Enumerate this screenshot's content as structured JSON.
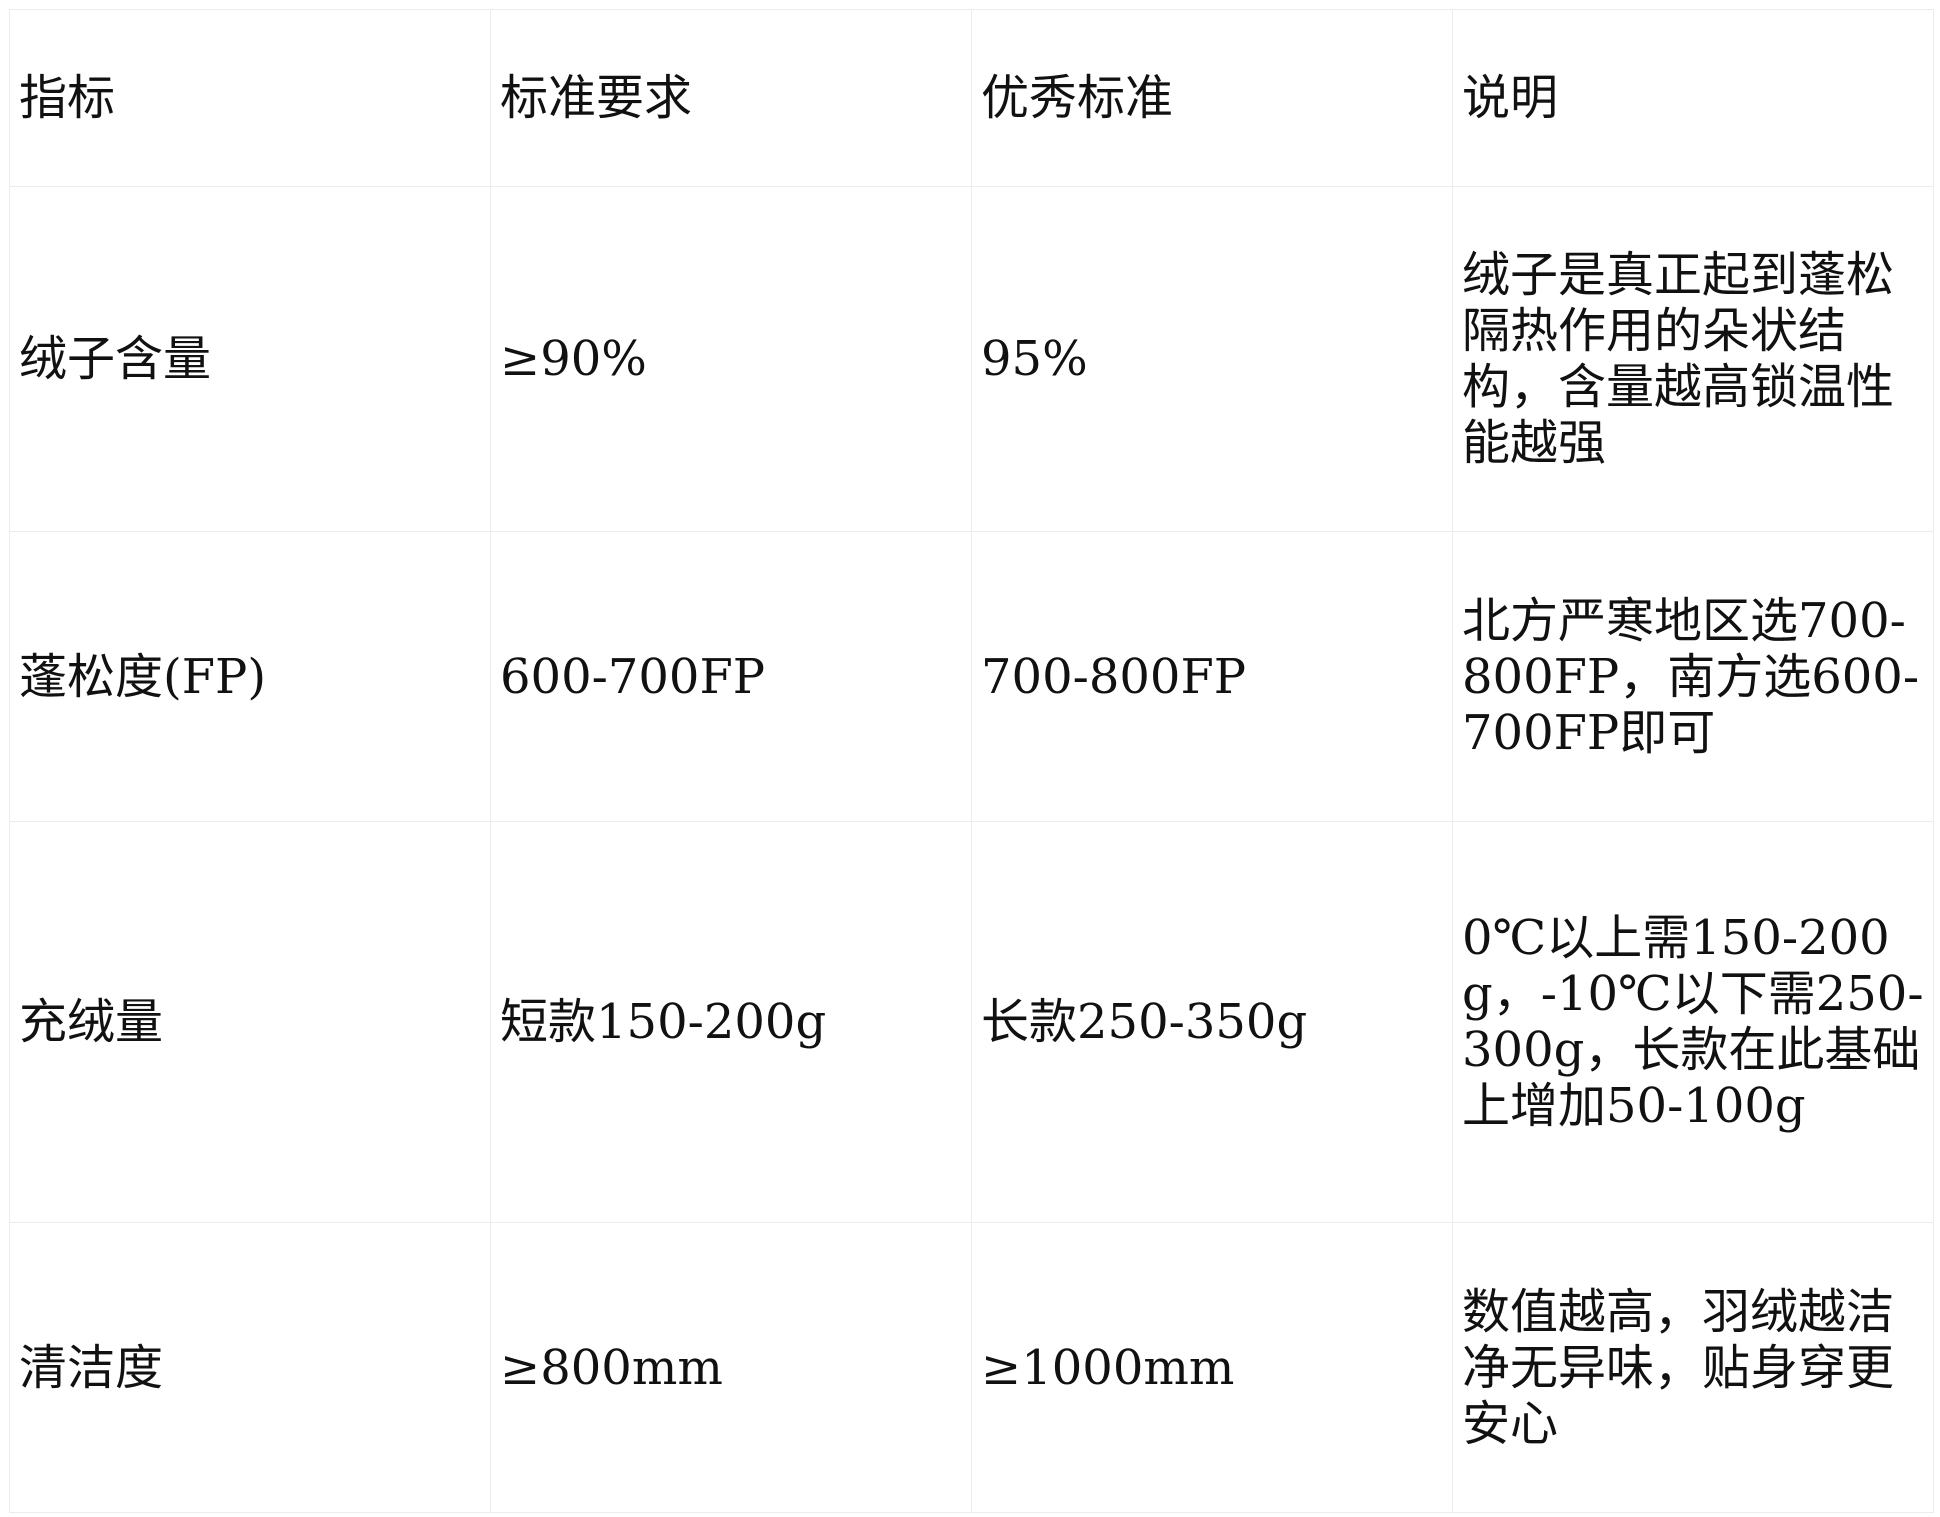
{
  "table": {
    "headers": [
      "指标",
      "标准要求",
      "优秀标准",
      "说明"
    ],
    "rows": [
      [
        "绒子含量",
        "≥90%",
        "95%",
        "绒子是真正起到蓬松隔热作用的朵状结构，含量越高锁温性能越强"
      ],
      [
        "蓬松度(FP)",
        "600-700FP",
        "700-800FP",
        "北方严寒地区选700-800FP，南方选600-700FP即可"
      ],
      [
        "充绒量",
        "短款150-200g",
        "长款250-350g",
        "0℃以上需150-200g，-10℃以下需250-300g，长款在此基础上增加50-100g"
      ],
      [
        "清洁度",
        "≥800mm",
        "≥1000mm",
        "数值越高，羽绒越洁净无异味，贴身穿更安心"
      ]
    ]
  }
}
